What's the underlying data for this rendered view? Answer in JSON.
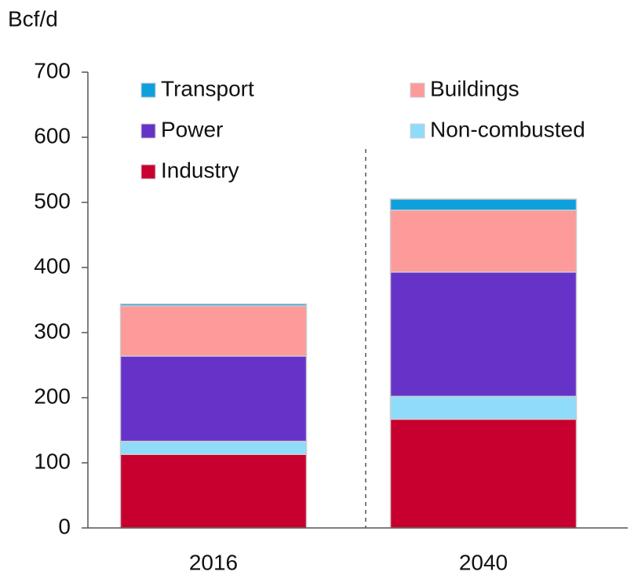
{
  "chart_data": {
    "type": "bar",
    "stacked": true,
    "y_label": "Bcf/d",
    "categories": [
      "2016",
      "2040"
    ],
    "series": [
      {
        "name": "Transport",
        "color": "#0ea0dc",
        "values": [
          3,
          17
        ]
      },
      {
        "name": "Buildings",
        "color": "#fd9a9a",
        "values": [
          77,
          95
        ]
      },
      {
        "name": "Power",
        "color": "#6633c8",
        "values": [
          131,
          191
        ]
      },
      {
        "name": "Non-combusted",
        "color": "#8fdcfa",
        "values": [
          20,
          35
        ]
      },
      {
        "name": "Industry",
        "color": "#c8002f",
        "values": [
          113,
          167
        ]
      }
    ],
    "ylim": [
      0,
      700
    ],
    "yticks": [
      0,
      100,
      200,
      300,
      400,
      500,
      600,
      700
    ]
  }
}
